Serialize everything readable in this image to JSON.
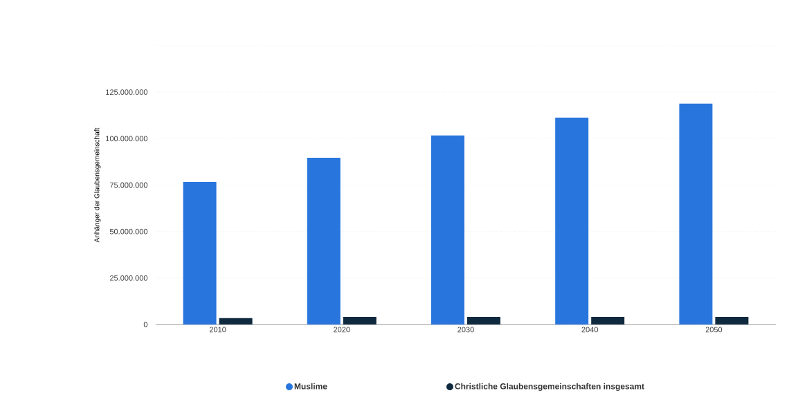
{
  "chart_data": {
    "type": "bar",
    "ylabel": "Anhänger der Glaubensgemeinschaft",
    "categories": [
      "2010",
      "2020",
      "2030",
      "2040",
      "2050"
    ],
    "series": [
      {
        "name": "Muslime",
        "color": "#2876dd",
        "values": [
          76700000,
          89700000,
          101700000,
          111300000,
          118800000
        ]
      },
      {
        "name": "Christliche Glaubensgemeinschaften insgesamt",
        "color": "#0f2a3f",
        "values": [
          3400000,
          4100000,
          4100000,
          4100000,
          4100000
        ]
      }
    ],
    "ylim": [
      0,
      150000000
    ],
    "yticks": [
      {
        "value": 0,
        "label": "0"
      },
      {
        "value": 25000000,
        "label": "25.000.000"
      },
      {
        "value": 50000000,
        "label": "50.000.000"
      },
      {
        "value": 75000000,
        "label": "75.000.000"
      },
      {
        "value": 100000000,
        "label": "100.000.000"
      },
      {
        "value": 125000000,
        "label": "125.000.000"
      },
      {
        "value": 150000000,
        "label": null
      }
    ],
    "grid": "y",
    "legend": "bottom"
  }
}
